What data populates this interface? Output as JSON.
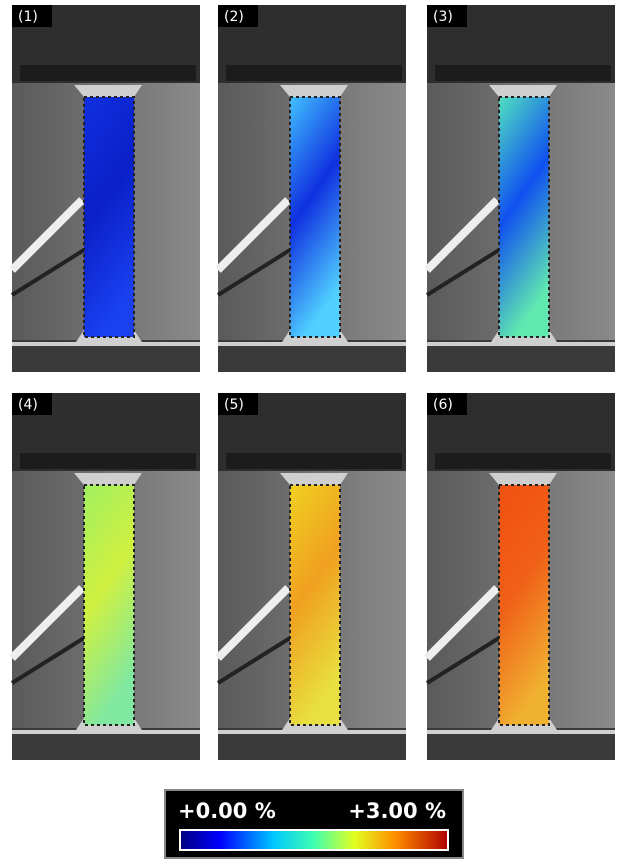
{
  "panels": [
    {
      "label": "(1)"
    },
    {
      "label": "(2)"
    },
    {
      "label": "(3)"
    },
    {
      "label": "(4)"
    },
    {
      "label": "(5)"
    },
    {
      "label": "(6)"
    }
  ],
  "colorbar": {
    "min_label": "+0.00 %",
    "max_label": "+3.00 %"
  }
}
